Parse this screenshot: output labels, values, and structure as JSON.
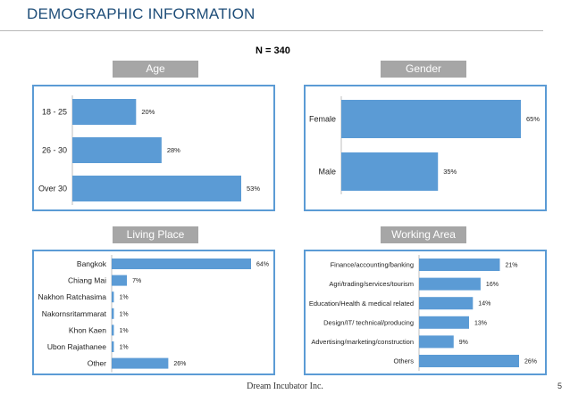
{
  "page": {
    "title": "DEMOGRAPHIC INFORMATION",
    "sample_size": "N = 340",
    "footer": "Dream Incubator Inc.",
    "page_number": "5"
  },
  "colors": {
    "bar": "#5b9bd5",
    "header": "#a6a6a6",
    "title": "#1f4e79"
  },
  "chart_data": [
    {
      "id": "age",
      "type": "bar",
      "orientation": "horizontal",
      "title": "Age",
      "categories": [
        "18 - 25",
        "26 - 30",
        "Over 30"
      ],
      "values": [
        20,
        28,
        53
      ],
      "labels": [
        "20%",
        "28%",
        "53%"
      ],
      "xlim": [
        0,
        53
      ]
    },
    {
      "id": "gender",
      "type": "bar",
      "orientation": "horizontal",
      "title": "Gender",
      "categories": [
        "Female",
        "Male"
      ],
      "values": [
        65,
        35
      ],
      "labels": [
        "65%",
        "35%"
      ],
      "xlim": [
        0,
        65
      ]
    },
    {
      "id": "living",
      "type": "bar",
      "orientation": "horizontal",
      "title": "Living Place",
      "categories": [
        "Bangkok",
        "Chiang Mai",
        "Nakhon Ratchasima",
        "Nakornsritammarat",
        "Khon Kaen",
        "Ubon Rajathanee",
        "Other"
      ],
      "values": [
        64,
        7,
        1,
        1,
        1,
        1,
        26
      ],
      "labels": [
        "64%",
        "7%",
        "1%",
        "1%",
        "1%",
        "1%",
        "26%"
      ],
      "xlim": [
        0,
        64
      ]
    },
    {
      "id": "working",
      "type": "bar",
      "orientation": "horizontal",
      "title": "Working Area",
      "categories": [
        "Finance/accounting/banking",
        "Agri/trading/services/tourism",
        "Education/Health & medical related",
        "Design/IT/ technical/producing",
        "Advertising/marketing/construction",
        "Others"
      ],
      "values": [
        21,
        16,
        14,
        13,
        9,
        26
      ],
      "labels": [
        "21%",
        "16%",
        "14%",
        "13%",
        "9%",
        "26%"
      ],
      "xlim": [
        0,
        26
      ]
    }
  ]
}
